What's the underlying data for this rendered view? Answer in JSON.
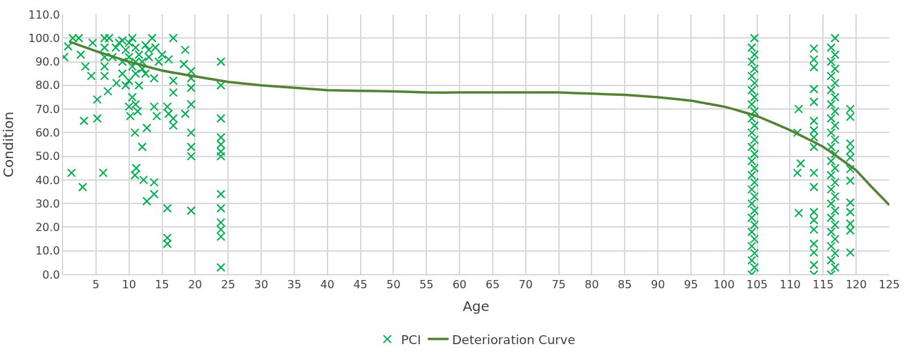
{
  "chart_data": {
    "type": "scatter",
    "xlabel": "Age",
    "ylabel": "Condition",
    "xlim": [
      0,
      125
    ],
    "xticks": [
      5,
      10,
      15,
      20,
      25,
      30,
      35,
      40,
      45,
      50,
      55,
      60,
      65,
      70,
      75,
      80,
      85,
      90,
      95,
      100,
      105,
      110,
      115,
      120,
      125
    ],
    "ylim": [
      0,
      110
    ],
    "yticks": [
      {
        "value": 0,
        "label": "0.0"
      },
      {
        "value": 10,
        "label": "10.0"
      },
      {
        "value": 20,
        "label": "20.0"
      },
      {
        "value": 30,
        "label": "30.0"
      },
      {
        "value": 40,
        "label": "40.0"
      },
      {
        "value": 50,
        "label": "50.0"
      },
      {
        "value": 60,
        "label": "60.0"
      },
      {
        "value": 70,
        "label": "70.0"
      },
      {
        "value": 80,
        "label": "80.0"
      },
      {
        "value": 90,
        "label": "90.0"
      },
      {
        "value": 100,
        "label": "100.0"
      },
      {
        "value": 110,
        "label": "110.0"
      }
    ],
    "grid": true,
    "legend": "bottom",
    "series": [
      {
        "name": "PCI",
        "marker": "cross",
        "color": "#00b050",
        "x": [
          0.2,
          1.3,
          3.0,
          3.2,
          5.2,
          5.2,
          6.8,
          6.1,
          8.1,
          4.3,
          3.4,
          1.5,
          2.4,
          0.8,
          2.7,
          4.5,
          6.3,
          6.3,
          6.3,
          6.3,
          6.3,
          10.2,
          10.9,
          11.3,
          11.1,
          10.9,
          12.2,
          12.0,
          12.7,
          12.7,
          13.8,
          13.8,
          13.8,
          14.2,
          13.8,
          15.8,
          15.8,
          15.8,
          15.8,
          16.0,
          16.7,
          16.7,
          16.7,
          16.7,
          16.7,
          16.0,
          18.5,
          18.5,
          18.3,
          19.4,
          19.4,
          19.4,
          19.4,
          19.4,
          19.4,
          19.4,
          19.4,
          23.9,
          23.9,
          23.9,
          23.9,
          23.9,
          23.9,
          23.9,
          23.9,
          23.9,
          23.9,
          23.9,
          23.9,
          23.9,
          9.0,
          9.5,
          10.0,
          10.5,
          11.0,
          9.0,
          10.0,
          10.5,
          11.5,
          12.0,
          12.5,
          13.0,
          13.5,
          12.0,
          11.0,
          9.5,
          8.0,
          7.5,
          10.0,
          11.0,
          12.5,
          9.0,
          13.0,
          14.0,
          15.0,
          14.5,
          11.5,
          10.5,
          11.0,
          10.0,
          7.0,
          8.5,
          104.2,
          104.6,
          104.2,
          104.6,
          104.2,
          104.6,
          104.2,
          104.6,
          104.2,
          104.6,
          104.2,
          104.6,
          104.2,
          104.6,
          104.2,
          104.6,
          104.2,
          104.6,
          104.2,
          104.6,
          104.2,
          104.6,
          104.2,
          104.6,
          104.2,
          104.6,
          104.2,
          104.6,
          104.2,
          104.6,
          104.2,
          104.6,
          104.2,
          104.6,
          111.3,
          111.1,
          111.6,
          111.1,
          111.3,
          113.6,
          113.6,
          113.6,
          113.6,
          113.6,
          113.6,
          113.6,
          113.6,
          113.6,
          113.6,
          113.6,
          113.6,
          113.6,
          113.6,
          113.6,
          113.6,
          113.6,
          113.6,
          116.2,
          116.8,
          116.2,
          116.8,
          116.2,
          116.8,
          116.2,
          116.8,
          116.2,
          116.8,
          116.2,
          116.8,
          116.2,
          116.8,
          116.2,
          116.8,
          116.2,
          116.8,
          116.2,
          116.8,
          116.2,
          116.8,
          116.2,
          116.8,
          116.2,
          116.8,
          116.2,
          116.8,
          116.2,
          116.8,
          116.2,
          116.8,
          116.2,
          116.8,
          119.1,
          119.1,
          119.1,
          119.1,
          119.1,
          119.1,
          119.1,
          119.1,
          119.1,
          119.1,
          119.1,
          119.1
        ],
        "values": [
          92,
          43,
          37,
          65,
          66,
          74,
          77.5,
          43,
          81,
          84,
          88,
          100,
          100,
          96.5,
          93,
          98,
          100,
          88,
          84,
          92,
          96,
          67,
          60,
          69,
          45,
          42,
          40,
          54,
          62,
          31,
          39,
          34,
          71,
          67,
          83,
          28,
          15.5,
          13,
          71,
          68,
          100,
          63,
          66,
          77,
          82,
          91,
          95,
          68,
          89,
          27,
          50,
          54,
          60,
          72,
          79,
          83,
          86,
          90,
          80,
          66,
          58,
          55,
          52,
          50,
          34,
          28,
          22,
          19,
          16,
          3,
          90,
          95,
          92,
          88,
          96,
          85,
          82,
          100,
          93,
          90,
          97,
          95,
          100,
          87,
          85,
          80,
          96,
          92,
          98,
          90,
          85,
          99,
          92,
          96,
          93,
          90,
          80,
          75,
          72,
          71,
          100,
          98,
          0,
          3,
          6,
          9,
          12,
          15,
          18,
          21,
          24,
          27,
          30,
          33,
          36,
          39,
          42,
          45,
          48,
          51,
          54,
          57,
          60,
          63,
          66,
          69,
          72,
          75,
          78,
          81,
          84,
          87,
          90,
          93,
          96,
          100,
          70,
          60,
          47,
          43,
          26,
          95.6,
          91,
          87.7,
          78.4,
          73,
          65,
          61,
          58,
          54,
          43,
          37,
          26.4,
          23,
          19,
          13,
          9.3,
          4,
          0,
          0,
          3,
          6,
          9,
          12,
          15,
          18,
          21,
          24,
          27,
          30,
          33,
          36,
          39,
          42,
          45,
          48,
          51,
          54,
          57,
          60,
          63,
          66,
          69,
          72,
          75,
          78,
          81,
          84,
          87,
          90,
          93,
          96,
          100,
          70,
          66.7,
          55.4,
          52.4,
          49.5,
          44.6,
          39.7,
          30.4,
          26.4,
          21.5,
          18.6,
          9.3
        ]
      },
      {
        "name": "Deterioration Curve",
        "type": "line",
        "marker": "none",
        "color": "#548235",
        "x": [
          1,
          5,
          10,
          15,
          20,
          25,
          30,
          35,
          40,
          45,
          50,
          55,
          60,
          65,
          70,
          75,
          80,
          85,
          90,
          95,
          100,
          105,
          110,
          115,
          120,
          122,
          125
        ],
        "values": [
          98.5,
          94.5,
          90,
          86.3,
          83.8,
          81.5,
          80,
          79,
          78,
          77.7,
          77.5,
          77,
          77,
          77,
          77,
          77,
          76.5,
          76,
          75,
          73.5,
          71,
          67,
          61,
          54,
          44,
          38,
          29.4
        ]
      }
    ]
  }
}
